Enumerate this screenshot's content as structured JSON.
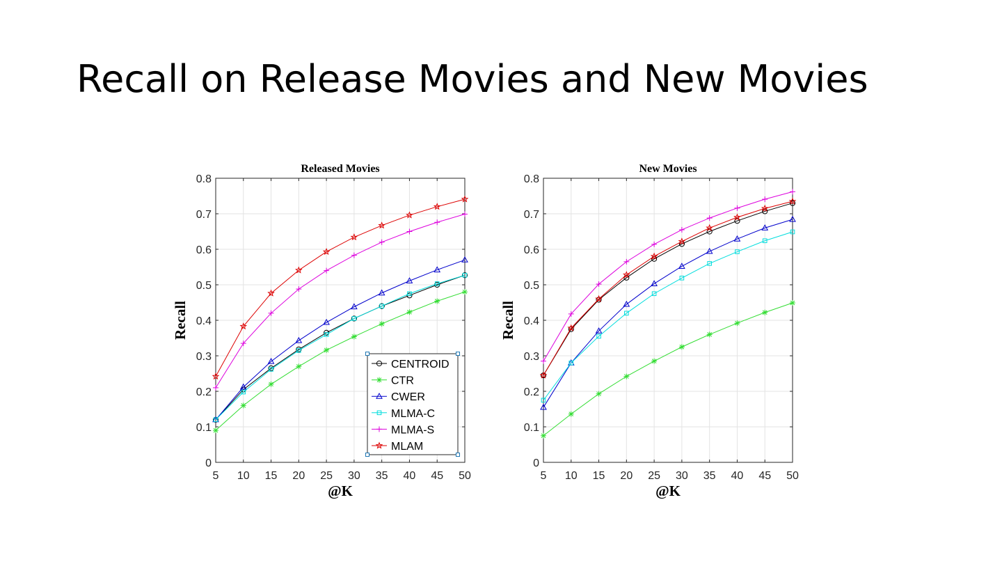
{
  "slide": {
    "title": "Recall on Release Movies and New Movies"
  },
  "chart_data": [
    {
      "type": "line",
      "title": "Released Movies",
      "xlabel": "@K",
      "ylabel": "Recall",
      "x": [
        5,
        10,
        15,
        20,
        25,
        30,
        35,
        40,
        45,
        50
      ],
      "xlim": [
        5,
        50
      ],
      "ylim": [
        0,
        0.8
      ],
      "xticks": [
        "5",
        "10",
        "15",
        "20",
        "25",
        "30",
        "35",
        "40",
        "45",
        "50"
      ],
      "yticks": [
        "0",
        "0.1",
        "0.2",
        "0.3",
        "0.4",
        "0.5",
        "0.6",
        "0.7",
        "0.8"
      ],
      "grid": true,
      "legend": {
        "position": "bottom-right"
      },
      "series": [
        {
          "name": "CENTROID",
          "color": "#000000",
          "marker": "circle",
          "values": [
            0.12,
            0.205,
            0.265,
            0.318,
            0.365,
            0.405,
            0.44,
            0.47,
            0.5,
            0.527
          ]
        },
        {
          "name": "CTR",
          "color": "#33dd33",
          "marker": "asterisk",
          "values": [
            0.09,
            0.16,
            0.22,
            0.27,
            0.316,
            0.354,
            0.39,
            0.423,
            0.454,
            0.48
          ]
        },
        {
          "name": "CWER",
          "color": "#0000cc",
          "marker": "triangle",
          "values": [
            0.12,
            0.212,
            0.284,
            0.343,
            0.394,
            0.438,
            0.477,
            0.511,
            0.542,
            0.57
          ]
        },
        {
          "name": "MLMA-C",
          "color": "#00dddd",
          "marker": "square",
          "values": [
            0.12,
            0.198,
            0.262,
            0.315,
            0.36,
            0.405,
            0.44,
            0.475,
            0.503,
            0.527
          ]
        },
        {
          "name": "MLMA-S",
          "color": "#dd00dd",
          "marker": "plus",
          "values": [
            0.21,
            0.335,
            0.42,
            0.488,
            0.54,
            0.583,
            0.62,
            0.65,
            0.676,
            0.699
          ]
        },
        {
          "name": "MLAM",
          "color": "#dd0000",
          "marker": "star",
          "values": [
            0.242,
            0.383,
            0.476,
            0.541,
            0.593,
            0.634,
            0.667,
            0.696,
            0.72,
            0.741
          ]
        }
      ]
    },
    {
      "type": "line",
      "title": "New Movies",
      "xlabel": "@K",
      "ylabel": "Recall",
      "x": [
        5,
        10,
        15,
        20,
        25,
        30,
        35,
        40,
        45,
        50
      ],
      "xlim": [
        5,
        50
      ],
      "ylim": [
        0,
        0.8
      ],
      "xticks": [
        "5",
        "10",
        "15",
        "20",
        "25",
        "30",
        "35",
        "40",
        "45",
        "50"
      ],
      "yticks": [
        "0",
        "0.1",
        "0.2",
        "0.3",
        "0.4",
        "0.5",
        "0.6",
        "0.7",
        "0.8"
      ],
      "grid": true,
      "series": [
        {
          "name": "CENTROID",
          "color": "#000000",
          "marker": "circle",
          "values": [
            0.245,
            0.375,
            0.458,
            0.52,
            0.573,
            0.615,
            0.65,
            0.68,
            0.707,
            0.73
          ]
        },
        {
          "name": "CTR",
          "color": "#33dd33",
          "marker": "asterisk",
          "values": [
            0.075,
            0.136,
            0.193,
            0.242,
            0.285,
            0.325,
            0.36,
            0.392,
            0.422,
            0.449
          ]
        },
        {
          "name": "CWER",
          "color": "#0000cc",
          "marker": "triangle",
          "values": [
            0.155,
            0.28,
            0.37,
            0.445,
            0.503,
            0.552,
            0.594,
            0.629,
            0.66,
            0.684
          ]
        },
        {
          "name": "MLMA-C",
          "color": "#00dddd",
          "marker": "square",
          "values": [
            0.175,
            0.28,
            0.355,
            0.42,
            0.475,
            0.519,
            0.56,
            0.593,
            0.624,
            0.649
          ]
        },
        {
          "name": "MLMA-S",
          "color": "#dd00dd",
          "marker": "plus",
          "values": [
            0.285,
            0.418,
            0.502,
            0.565,
            0.614,
            0.655,
            0.688,
            0.716,
            0.741,
            0.762
          ]
        },
        {
          "name": "MLAM",
          "color": "#dd0000",
          "marker": "star",
          "values": [
            0.245,
            0.378,
            0.46,
            0.528,
            0.58,
            0.622,
            0.66,
            0.69,
            0.715,
            0.735
          ]
        }
      ]
    }
  ]
}
